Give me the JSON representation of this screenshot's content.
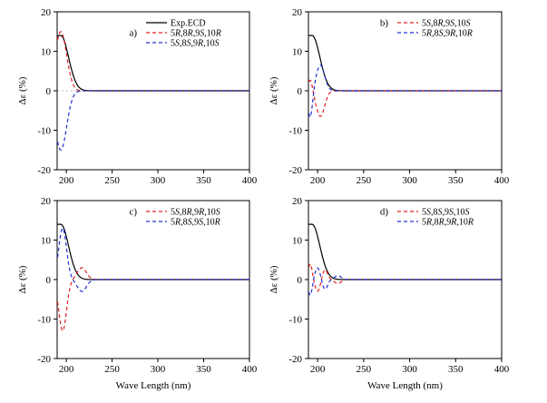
{
  "chart_data": [
    {
      "type": "line",
      "panel_label": "a)",
      "xlabel": "",
      "ylabel": "Δε (%)",
      "xlim": [
        190,
        400
      ],
      "ylim": [
        -20,
        20
      ],
      "xticks": [
        200,
        250,
        300,
        350,
        400
      ],
      "yticks": [
        -20,
        -10,
        0,
        10,
        20
      ],
      "legend_placement": "top-right",
      "zero_line": true,
      "series": [
        {
          "name": "Exp.ECD",
          "style": "solid",
          "color": "#000000",
          "amp": 14,
          "lam0": 194,
          "width": 12,
          "tail": 1
        },
        {
          "name": "5R,8R,9S,10R",
          "style": "dashed",
          "color": "#e02020",
          "amp": 15,
          "lam0": 194,
          "width": 9,
          "tail": 0
        },
        {
          "name": "5S,8S,9R,10S",
          "style": "dashed",
          "color": "#2030d0",
          "amp": -15,
          "lam0": 194,
          "width": 9,
          "tail": 0
        }
      ]
    },
    {
      "type": "line",
      "panel_label": "b)",
      "xlabel": "",
      "ylabel": "Δε (%)",
      "xlim": [
        190,
        400
      ],
      "ylim": [
        -20,
        20
      ],
      "xticks": [
        200,
        250,
        300,
        350,
        400
      ],
      "yticks": [
        -20,
        -10,
        0,
        10,
        20
      ],
      "legend_placement": "top-right",
      "zero_line": false,
      "series": [
        {
          "name": "Exp.ECD",
          "style": "solid",
          "color": "#000000",
          "amp": 14,
          "lam0": 194,
          "width": 12,
          "tail": 1,
          "legend": false
        },
        {
          "name": "5S,8R,9S,10S",
          "style": "dashed",
          "color": "#e02020",
          "amp": -6.5,
          "lam0": 203,
          "width": 6.5,
          "pre": 3,
          "pre_lam": 192
        },
        {
          "name": "5R,8S,9R,10R",
          "style": "dashed",
          "color": "#2030d0",
          "amp": 6.5,
          "lam0": 203,
          "width": 6.5,
          "pre": -7,
          "pre_lam": 192
        }
      ]
    },
    {
      "type": "line",
      "panel_label": "c)",
      "xlabel": "Wave Length (nm)",
      "ylabel": "Δε (%)",
      "xlim": [
        190,
        400
      ],
      "ylim": [
        -20,
        20
      ],
      "xticks": [
        200,
        250,
        300,
        350,
        400
      ],
      "yticks": [
        -20,
        -10,
        0,
        10,
        20
      ],
      "legend_placement": "top-right",
      "zero_line": false,
      "series": [
        {
          "name": "Exp.ECD",
          "style": "solid",
          "color": "#000000",
          "amp": 14,
          "lam0": 194,
          "width": 12,
          "tail": 1,
          "legend": false
        },
        {
          "name": "5S,8R,9R,10S",
          "style": "dashed",
          "color": "#e02020",
          "amp": -13,
          "lam0": 196,
          "width": 6,
          "second": 3,
          "second_lam": 217,
          "second_w": 7
        },
        {
          "name": "5R,8S,9S,10R",
          "style": "dashed",
          "color": "#2030d0",
          "amp": 13,
          "lam0": 196,
          "width": 6,
          "second": -3,
          "second_lam": 217,
          "second_w": 7
        }
      ]
    },
    {
      "type": "line",
      "panel_label": "d)",
      "xlabel": "Wave Length (nm)",
      "ylabel": "Δε (%)",
      "xlim": [
        190,
        400
      ],
      "ylim": [
        -20,
        20
      ],
      "xticks": [
        200,
        250,
        300,
        350,
        400
      ],
      "yticks": [
        -20,
        -10,
        0,
        10,
        20
      ],
      "legend_placement": "top-right",
      "zero_line": false,
      "series": [
        {
          "name": "Exp.ECD",
          "style": "solid",
          "color": "#000000",
          "amp": 14,
          "lam0": 194,
          "width": 12,
          "tail": 1,
          "legend": false
        },
        {
          "name": "5S,8S,9S,10S",
          "style": "dashed",
          "color": "#e02020",
          "amp": 4,
          "lam0": 192,
          "width": 3,
          "second": -3,
          "second_lam": 200,
          "second_w": 4,
          "third": 2.5,
          "third_lam": 208,
          "third_w": 4,
          "fourth": -1,
          "fourth_lam": 222,
          "fourth_w": 5
        },
        {
          "name": "5R,8R,9R,10R",
          "style": "dashed",
          "color": "#2030d0",
          "amp": -4,
          "lam0": 192,
          "width": 3,
          "second": 3,
          "second_lam": 200,
          "second_w": 4,
          "third": -2.5,
          "third_lam": 208,
          "third_w": 4,
          "fourth": 1,
          "fourth_lam": 222,
          "fourth_w": 5
        }
      ]
    }
  ]
}
